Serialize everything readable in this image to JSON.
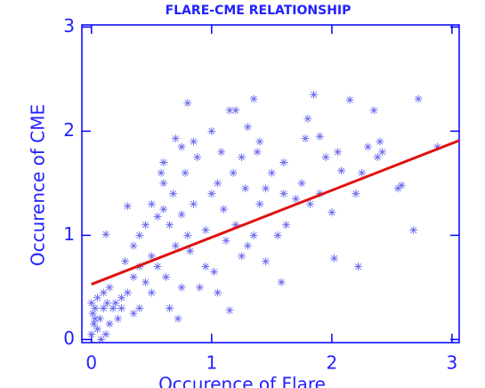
{
  "chart_data": {
    "type": "scatter",
    "title": "FLARE-CME RELATIONSHIP",
    "x_label": "Occurence of Flare",
    "y_label": "Occurence of CME",
    "xlim": [
      -0.08,
      3.06
    ],
    "ylim": [
      -0.03,
      3.02
    ],
    "xticks": [
      0,
      1,
      2,
      3
    ],
    "yticks": [
      0,
      1,
      2,
      3
    ],
    "axis_color": "#0000ff",
    "series": [
      {
        "style": "markers",
        "color": "#6a6aee",
        "x": [
          0.0,
          0.02,
          0.01,
          0.03,
          0.0,
          0.05,
          0.07,
          0.1,
          0.12,
          0.15,
          0.05,
          0.1,
          0.15,
          0.2,
          0.22,
          0.25,
          0.18,
          0.08,
          0.03,
          0.13,
          0.12,
          0.3,
          0.28,
          0.3,
          0.35,
          0.35,
          0.4,
          0.4,
          0.45,
          0.45,
          0.5,
          0.5,
          0.55,
          0.55,
          0.58,
          0.6,
          0.6,
          0.62,
          0.65,
          0.65,
          0.68,
          0.7,
          0.7,
          0.72,
          0.75,
          0.75,
          0.78,
          0.8,
          0.8,
          0.82,
          0.85,
          0.85,
          0.88,
          0.9,
          0.95,
          1.0,
          1.0,
          1.02,
          1.05,
          1.08,
          1.1,
          1.12,
          1.15,
          1.15,
          1.18,
          1.2,
          1.2,
          1.25,
          1.25,
          1.28,
          1.3,
          1.3,
          1.35,
          1.38,
          1.4,
          1.4,
          1.45,
          1.5,
          1.55,
          1.58,
          1.6,
          1.62,
          1.7,
          1.75,
          1.78,
          1.8,
          1.85,
          1.82,
          1.9,
          1.95,
          2.0,
          2.02,
          2.05,
          2.08,
          2.15,
          2.2,
          2.22,
          2.25,
          2.3,
          2.35,
          2.38,
          2.4,
          2.42,
          2.55,
          2.58,
          2.68,
          2.72,
          2.88,
          1.9,
          0.95,
          1.05,
          0.5,
          0.4,
          0.25,
          0.35,
          0.6,
          0.75,
          1.35,
          1.45,
          1.6
        ],
        "values": [
          0.05,
          0.15,
          0.25,
          0.3,
          0.35,
          0.1,
          0.2,
          0.3,
          0.05,
          0.15,
          0.4,
          0.45,
          0.5,
          0.35,
          0.2,
          0.4,
          0.3,
          0.0,
          0.2,
          0.35,
          1.01,
          1.28,
          0.75,
          0.45,
          0.6,
          0.9,
          1.0,
          0.3,
          1.1,
          0.55,
          1.3,
          0.45,
          1.18,
          0.7,
          1.6,
          1.5,
          1.7,
          0.6,
          1.1,
          0.3,
          1.4,
          1.93,
          0.9,
          0.2,
          1.85,
          1.2,
          1.6,
          2.27,
          1.0,
          0.85,
          1.9,
          1.3,
          1.75,
          0.5,
          0.7,
          2.0,
          1.4,
          0.65,
          1.5,
          1.8,
          1.25,
          0.95,
          2.2,
          0.28,
          1.6,
          2.2,
          1.1,
          1.75,
          0.8,
          1.45,
          0.9,
          2.04,
          2.31,
          1.8,
          1.9,
          1.3,
          0.75,
          1.6,
          1.0,
          0.55,
          1.7,
          1.1,
          1.35,
          1.5,
          1.93,
          2.12,
          2.35,
          1.3,
          1.4,
          1.75,
          1.22,
          0.78,
          1.8,
          1.62,
          2.3,
          1.4,
          0.7,
          1.6,
          1.85,
          2.2,
          1.75,
          1.9,
          1.8,
          1.45,
          1.48,
          1.05,
          2.31,
          1.85,
          1.95,
          1.05,
          0.45,
          0.8,
          0.7,
          0.3,
          0.25,
          1.25,
          0.5,
          1.0,
          1.45,
          1.4
        ]
      },
      {
        "style": "line",
        "color": "#e01010",
        "x": [
          0,
          3.06
        ],
        "values": [
          0.53,
          1.91
        ]
      }
    ]
  }
}
